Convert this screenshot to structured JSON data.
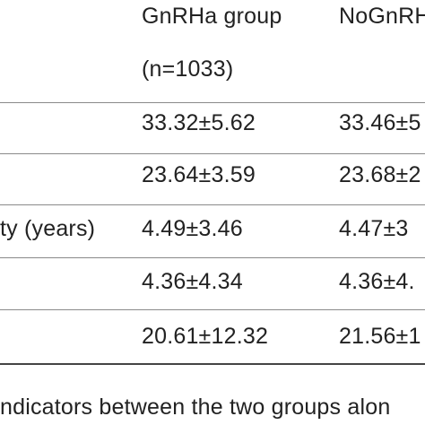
{
  "table": {
    "header": {
      "col1_line1": "GnRHa group",
      "col1_line2": "(n=1033)",
      "col2_line1": "NoGnRH"
    },
    "rows": [
      {
        "label": "",
        "gnrha": "33.32±5.62",
        "nognrh": "33.46±5"
      },
      {
        "label": "",
        "gnrha": "23.64±3.59",
        "nognrh": "23.68±2"
      },
      {
        "label": "ty (years)",
        "gnrha": "4.49±3.46",
        "nognrh": "4.47±3"
      },
      {
        "label": "",
        "gnrha": "4.36±4.34",
        "nognrh": "4.36±4."
      },
      {
        "label": "",
        "gnrha": "20.61±12.32",
        "nognrh": "21.56±1"
      }
    ]
  },
  "caption": "ndicators between the two groups alon"
}
